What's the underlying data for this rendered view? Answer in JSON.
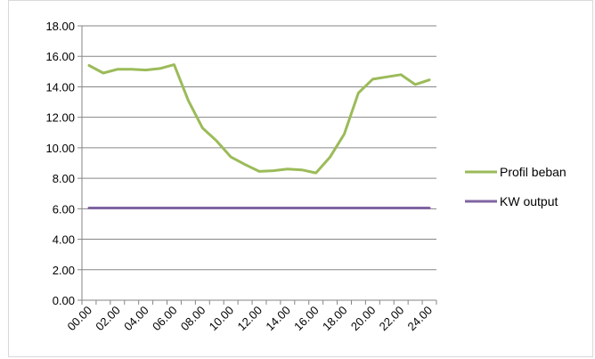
{
  "chart_data": {
    "type": "line",
    "x": [
      "00.00",
      "01.00",
      "02.00",
      "03.00",
      "04.00",
      "05.00",
      "06.00",
      "07.00",
      "08.00",
      "09.00",
      "10.00",
      "11.00",
      "12.00",
      "13.00",
      "14.00",
      "15.00",
      "16.00",
      "17.00",
      "18.00",
      "19.00",
      "20.00",
      "21.00",
      "22.00",
      "23.00",
      "24.00"
    ],
    "x_tick_labels": [
      "00.00",
      "02.00",
      "04.00",
      "06.00",
      "08.00",
      "10.00",
      "12.00",
      "14.00",
      "16.00",
      "18.00",
      "20.00",
      "22.00",
      "24.00"
    ],
    "y_tick_labels": [
      "0.00",
      "2.00",
      "4.00",
      "6.00",
      "8.00",
      "10.00",
      "12.00",
      "14.00",
      "16.00",
      "18.00"
    ],
    "ylim": [
      0,
      18
    ],
    "grid": true,
    "legend": "right",
    "series": [
      {
        "name": "Profil beban",
        "color": "#9BBB59",
        "values": [
          15.4,
          14.9,
          15.15,
          15.15,
          15.1,
          15.2,
          15.45,
          13.1,
          11.3,
          10.45,
          9.4,
          8.9,
          8.45,
          8.5,
          8.6,
          8.55,
          8.35,
          9.4,
          10.9,
          13.6,
          14.5,
          14.65,
          14.8,
          14.15,
          14.45
        ]
      },
      {
        "name": "KW output",
        "color": "#8064A2",
        "values": [
          6.05,
          6.05,
          6.05,
          6.05,
          6.05,
          6.05,
          6.05,
          6.05,
          6.05,
          6.05,
          6.05,
          6.05,
          6.05,
          6.05,
          6.05,
          6.05,
          6.05,
          6.05,
          6.05,
          6.05,
          6.05,
          6.05,
          6.05,
          6.05,
          6.05
        ]
      }
    ]
  }
}
